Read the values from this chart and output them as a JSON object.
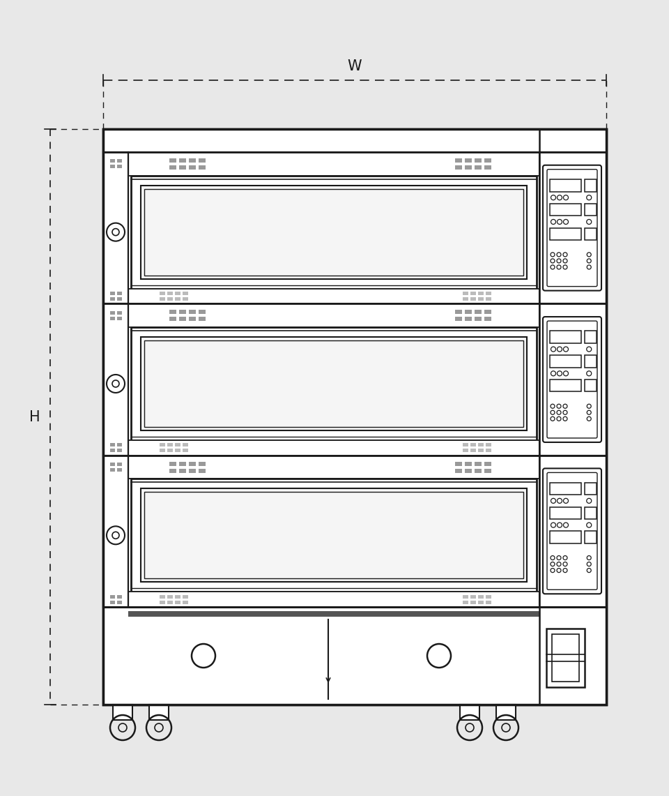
{
  "bg_color": "#e8e8e8",
  "line_color": "#1a1a1a",
  "gray_color": "#999999",
  "light_gray": "#bbbbbb",
  "title": "W",
  "h_label": "H",
  "num_tiers": 3
}
